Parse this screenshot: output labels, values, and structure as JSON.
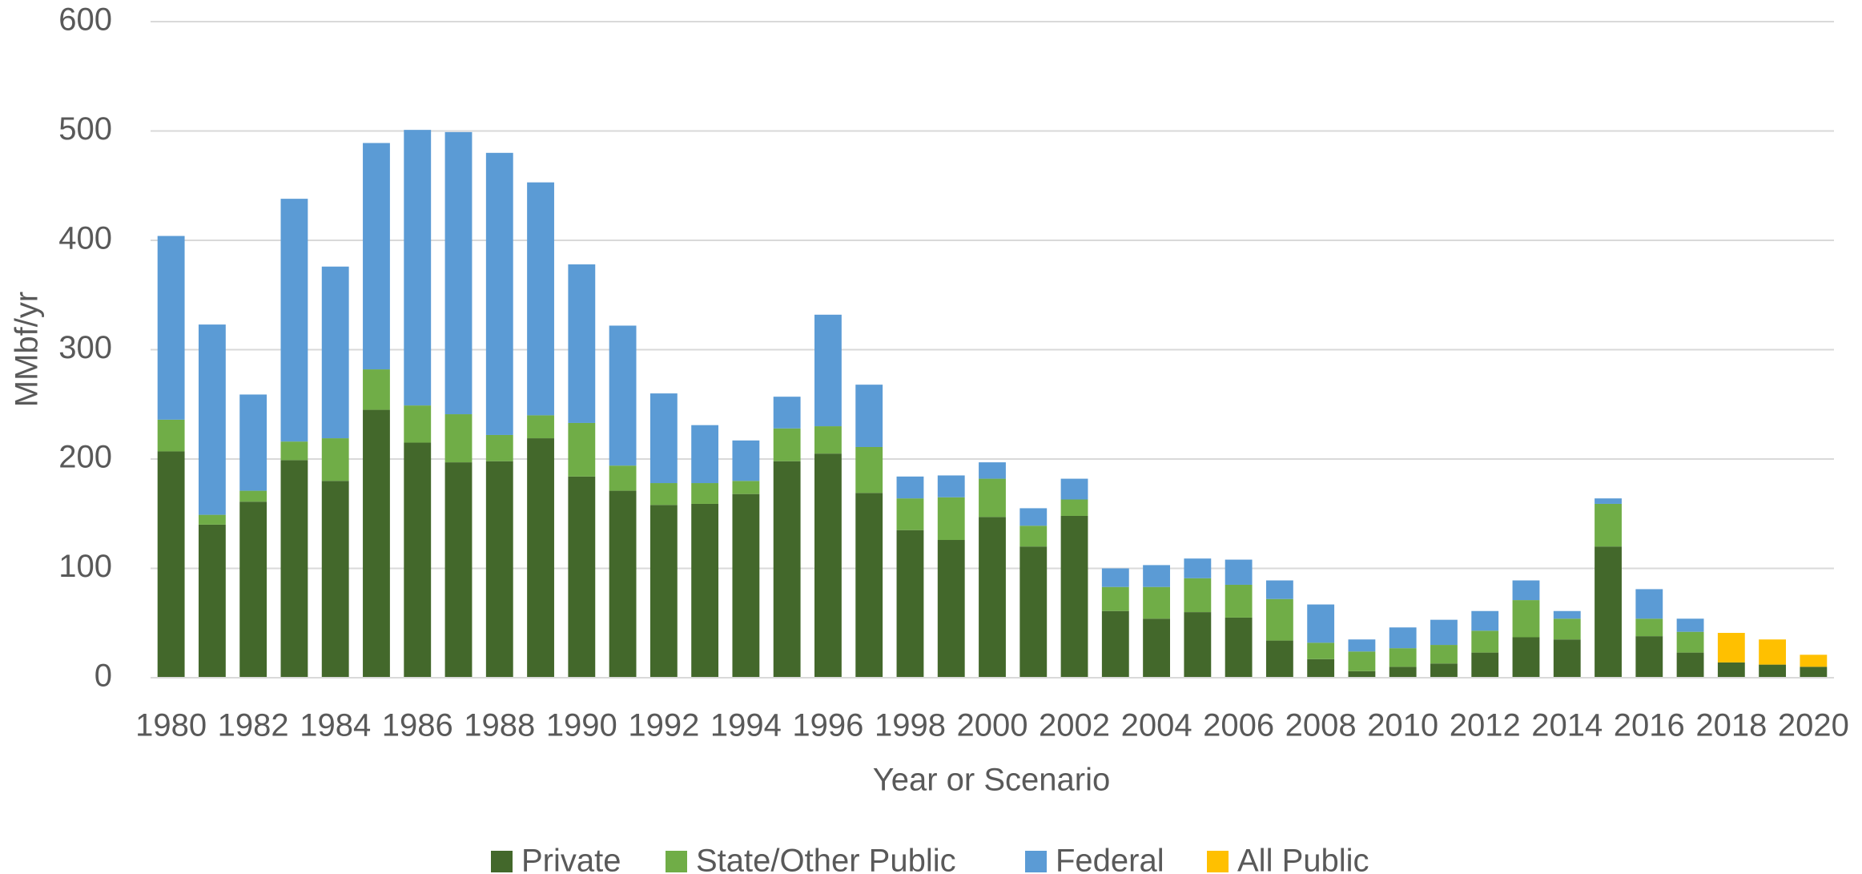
{
  "chart_data": {
    "type": "stacked_bar",
    "x_label": "Year or Scenario",
    "y_label": "MMbf/yr",
    "categories": [
      "1980",
      null,
      "1982",
      null,
      "1984",
      null,
      "1986",
      null,
      "1988",
      null,
      "1990",
      null,
      "1992",
      null,
      "1994",
      null,
      "1996",
      null,
      "1998",
      null,
      "2000",
      null,
      "2002",
      null,
      "2004",
      null,
      "2006",
      null,
      "2008",
      null,
      "2010",
      null,
      "2012",
      null,
      "2014",
      null,
      "2016",
      null,
      "2018",
      null,
      "2020"
    ],
    "series": [
      {
        "name": "Private",
        "color": "#43682b",
        "values": [
          207,
          140,
          161,
          199,
          180,
          245,
          215,
          197,
          198,
          219,
          184,
          171,
          158,
          159,
          168,
          198,
          205,
          169,
          135,
          126,
          147,
          120,
          148,
          61,
          54,
          60,
          55,
          34,
          17,
          6,
          10,
          13,
          23,
          37,
          35,
          120,
          38,
          23,
          14,
          12,
          10
        ]
      },
      {
        "name": "State/Other Public",
        "color": "#70ad47",
        "values": [
          29,
          9,
          10,
          17,
          39,
          37,
          34,
          44,
          24,
          21,
          49,
          23,
          20,
          19,
          12,
          30,
          25,
          42,
          29,
          39,
          35,
          19,
          15,
          22,
          29,
          31,
          30,
          38,
          15,
          18,
          17,
          17,
          20,
          34,
          19,
          39,
          16,
          19,
          null,
          null,
          null
        ]
      },
      {
        "name": "Federal",
        "color": "#5b9bd5",
        "values": [
          168,
          174,
          88,
          222,
          157,
          207,
          252,
          258,
          258,
          213,
          145,
          128,
          82,
          53,
          37,
          29,
          102,
          57,
          20,
          20,
          15,
          16,
          19,
          17,
          20,
          18,
          23,
          17,
          35,
          11,
          19,
          23,
          18,
          18,
          7,
          5,
          27,
          12,
          null,
          null,
          null
        ]
      },
      {
        "name": "All Public",
        "color": "#ffc000",
        "values": [
          null,
          null,
          null,
          null,
          null,
          null,
          null,
          null,
          null,
          null,
          null,
          null,
          null,
          null,
          null,
          null,
          null,
          null,
          null,
          null,
          null,
          null,
          null,
          null,
          null,
          null,
          null,
          null,
          null,
          null,
          null,
          null,
          null,
          null,
          null,
          null,
          null,
          null,
          27,
          23,
          11
        ]
      }
    ],
    "ylim": [
      0,
      600
    ],
    "yticks": [
      0,
      100,
      200,
      300,
      400,
      500,
      600
    ],
    "grid": true,
    "legend": "bottom"
  }
}
